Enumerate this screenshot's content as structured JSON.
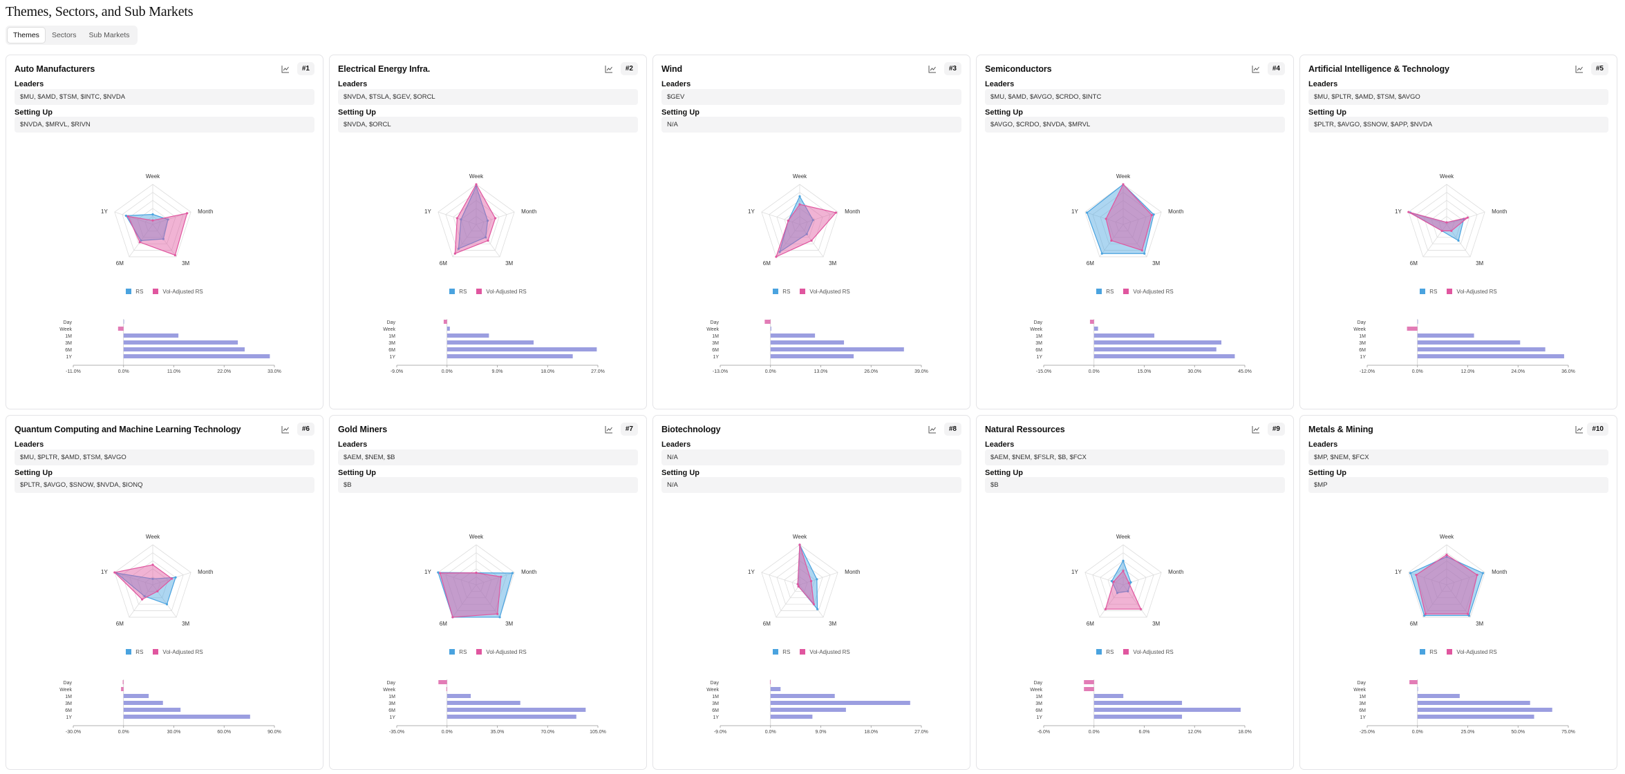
{
  "page": {
    "title": "Themes, Sectors, and Sub Markets"
  },
  "tabs": [
    {
      "label": "Themes",
      "active": true
    },
    {
      "label": "Sectors"
    },
    {
      "label": "Sub Markets"
    }
  ],
  "labels": {
    "leaders": "Leaders",
    "setting_up": "Setting Up"
  },
  "legend": {
    "rs": "RS",
    "vol": "Vol-Adjusted RS"
  },
  "colors": {
    "rs": "#4aa3df",
    "vol": "#e0569f",
    "bar": "#9b9ee0",
    "bar_neg": "#e27cb6"
  },
  "radar_axes": [
    "Week",
    "Month",
    "3M",
    "6M",
    "1Y"
  ],
  "bar_categories": [
    "Day",
    "Week",
    "1M",
    "3M",
    "6M",
    "1Y"
  ],
  "cards": [
    {
      "title": "Auto Manufacturers",
      "rank": "#1",
      "leaders": "$MU, $AMD, $TSM, $INTC, $NVDA",
      "setting_up": "$NVDA, $MRVL, $RIVN",
      "rs": [
        0.25,
        0.4,
        0.45,
        0.5,
        0.7
      ],
      "vol": [
        0.1,
        0.9,
        0.95,
        0.55,
        0.65
      ],
      "chart_data": {
        "type": "bar",
        "categories": [
          "Day",
          "Week",
          "1M",
          "3M",
          "6M",
          "1Y"
        ],
        "values": [
          0,
          -1.2,
          12,
          25,
          26.5,
          32
        ],
        "xticks": [
          "-11.0%",
          "0.0%",
          "11.0%",
          "22.0%",
          "33.0%"
        ],
        "xlim": [
          -11,
          33
        ]
      }
    },
    {
      "title": "Electrical Energy Infra.",
      "rank": "#2",
      "leaders": "$NVDA, $TSLA, $GEV, $ORCL",
      "setting_up": "$NVDA, $ORCL",
      "rs": [
        0.95,
        0.3,
        0.4,
        0.75,
        0.4
      ],
      "vol": [
        1.0,
        0.5,
        0.5,
        0.9,
        0.5
      ],
      "chart_data": {
        "type": "bar",
        "categories": [
          "Day",
          "Week",
          "1M",
          "3M",
          "6M",
          "1Y"
        ],
        "values": [
          -0.6,
          0.5,
          7.5,
          15.5,
          26.8,
          22.5
        ],
        "xticks": [
          "-9.0%",
          "0.0%",
          "9.0%",
          "18.0%",
          "27.0%"
        ],
        "xlim": [
          -9,
          27
        ]
      }
    },
    {
      "title": "Wind",
      "rank": "#3",
      "leaders": "$GEV",
      "setting_up": "N/A",
      "rs": [
        0.7,
        0.35,
        0.3,
        0.85,
        0.3
      ],
      "vol": [
        0.5,
        0.95,
        0.5,
        1.0,
        0.3
      ],
      "chart_data": {
        "type": "bar",
        "categories": [
          "Day",
          "Week",
          "1M",
          "3M",
          "6M",
          "1Y"
        ],
        "values": [
          -1.5,
          0.2,
          11.5,
          19,
          34.5,
          21.5
        ],
        "xticks": [
          "-13.0%",
          "0.0%",
          "13.0%",
          "26.0%",
          "39.0%"
        ],
        "xlim": [
          -13,
          39
        ]
      }
    },
    {
      "title": "Semiconductors",
      "rank": "#4",
      "leaders": "$MU, $AMD, $AVGO, $CRDO, $INTC",
      "setting_up": "$AVGO, $CRDO, $NVDA, $MRVL",
      "rs": [
        1.0,
        0.8,
        0.9,
        0.9,
        0.95
      ],
      "vol": [
        1.0,
        0.75,
        0.8,
        0.5,
        0.45
      ],
      "chart_data": {
        "type": "bar",
        "categories": [
          "Day",
          "Week",
          "1M",
          "3M",
          "6M",
          "1Y"
        ],
        "values": [
          -1.2,
          1.2,
          18,
          38,
          36.5,
          42
        ],
        "xticks": [
          "-15.0%",
          "0.0%",
          "15.0%",
          "30.0%",
          "45.0%"
        ],
        "xlim": [
          -15,
          45
        ]
      }
    },
    {
      "title": "Artificial Intelligence & Technology",
      "rank": "#5",
      "leaders": "$MU, $PLTR, $AMD, $TSM, $AVGO",
      "setting_up": "$PLTR, $AVGO, $SNOW, $APP, $NVDA",
      "rs": [
        0.05,
        0.45,
        0.5,
        0.2,
        0.95
      ],
      "vol": [
        0.05,
        0.55,
        0.2,
        0.2,
        1.0
      ],
      "chart_data": {
        "type": "bar",
        "categories": [
          "Day",
          "Week",
          "1M",
          "3M",
          "6M",
          "1Y"
        ],
        "values": [
          0,
          -2.5,
          13.5,
          24.5,
          30.5,
          35
        ],
        "xticks": [
          "-12.0%",
          "0.0%",
          "12.0%",
          "24.0%",
          "36.0%"
        ],
        "xlim": [
          -12,
          36
        ]
      }
    },
    {
      "title": "Quantum Computing and Machine Learning Technology",
      "rank": "#6",
      "leaders": "$MU, $PLTR, $AMD, $TSM, $AVGO",
      "setting_up": "$PLTR, $AVGO, $SNOW, $NVDA, $IONQ",
      "rs": [
        0.15,
        0.6,
        0.6,
        0.35,
        0.95
      ],
      "vol": [
        0.5,
        0.5,
        0.2,
        0.45,
        1.0
      ],
      "chart_data": {
        "type": "bar",
        "categories": [
          "Day",
          "Week",
          "1M",
          "3M",
          "6M",
          "1Y"
        ],
        "values": [
          -0.5,
          -1.5,
          15,
          23.5,
          34,
          75.5
        ],
        "xticks": [
          "-30.0%",
          "0.0%",
          "30.0%",
          "60.0%",
          "90.0%"
        ],
        "xlim": [
          -30,
          90
        ]
      }
    },
    {
      "title": "Gold Miners",
      "rank": "#7",
      "leaders": "$AEM, $NEM, $B",
      "setting_up": "$B",
      "rs": [
        0.3,
        0.95,
        1.0,
        1.0,
        1.0
      ],
      "vol": [
        0.3,
        0.65,
        0.9,
        1.0,
        0.95
      ],
      "chart_data": {
        "type": "bar",
        "categories": [
          "Day",
          "Week",
          "1M",
          "3M",
          "6M",
          "1Y"
        ],
        "values": [
          -6,
          -0.5,
          16.5,
          51,
          96.5,
          90
        ],
        "xticks": [
          "-35.0%",
          "0.0%",
          "35.0%",
          "70.0%",
          "105.0%"
        ],
        "xlim": [
          -35,
          105
        ]
      }
    },
    {
      "title": "Biotechnology",
      "rank": "#8",
      "leaders": "N/A",
      "setting_up": "N/A",
      "rs": [
        1.0,
        0.45,
        0.75,
        0.05,
        0.05
      ],
      "vol": [
        1.0,
        0.3,
        0.6,
        0.05,
        0.05
      ],
      "chart_data": {
        "type": "bar",
        "categories": [
          "Day",
          "Week",
          "1M",
          "3M",
          "6M",
          "1Y"
        ],
        "values": [
          -0.1,
          1.8,
          11.5,
          25,
          13.5,
          7.5
        ],
        "xticks": [
          "-9.0%",
          "0.0%",
          "9.0%",
          "18.0%",
          "27.0%"
        ],
        "xlim": [
          -9,
          27
        ]
      }
    },
    {
      "title": "Natural Ressources",
      "rank": "#9",
      "leaders": "$AEM, $NEM, $FSLR, $B, $FCX",
      "setting_up": "$B",
      "rs": [
        0.6,
        0.2,
        0.2,
        0.25,
        0.3
      ],
      "vol": [
        0.35,
        0.15,
        0.75,
        0.75,
        0.25
      ],
      "chart_data": {
        "type": "bar",
        "categories": [
          "Day",
          "Week",
          "1M",
          "3M",
          "6M",
          "1Y"
        ],
        "values": [
          -1.2,
          -1.2,
          3.5,
          10.5,
          17.5,
          10.5
        ],
        "xticks": [
          "-6.0%",
          "0.0%",
          "6.0%",
          "12.0%",
          "18.0%"
        ],
        "xlim": [
          -6,
          18
        ]
      }
    },
    {
      "title": "Metals & Mining",
      "rank": "#10",
      "leaders": "$MP, $NEM, $FCX",
      "setting_up": "$MP",
      "rs": [
        0.7,
        0.95,
        0.95,
        0.95,
        0.95
      ],
      "vol": [
        0.75,
        0.8,
        0.9,
        0.9,
        0.8
      ],
      "chart_data": {
        "type": "bar",
        "categories": [
          "Day",
          "Week",
          "1M",
          "3M",
          "6M",
          "1Y"
        ],
        "values": [
          -4,
          0,
          21,
          56,
          67,
          58
        ],
        "xticks": [
          "-25.0%",
          "0.0%",
          "25.0%",
          "50.0%",
          "75.0%"
        ],
        "xlim": [
          -25,
          75
        ]
      }
    }
  ]
}
